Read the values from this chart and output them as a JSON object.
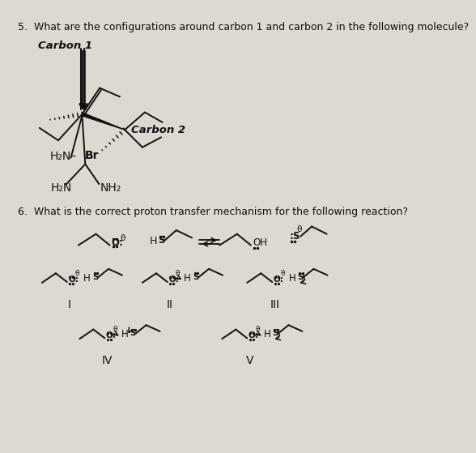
{
  "bg_color": "#ddd9d0",
  "text_color": "#111111",
  "q5_text": "5.  What are the configurations around carbon 1 and carbon 2 in the following molecule?",
  "q6_text": "6.  What is the correct proton transfer mechanism for the following reaction?",
  "carbon1_label": "Carbon 1",
  "carbon2_label": "Carbon 2",
  "br_label": "Br",
  "h2n1": "H₂N–",
  "h2n2": "H₂N",
  "nh2": "NH₂",
  "roman_I": "I",
  "roman_II": "II",
  "roman_III": "III",
  "roman_IV": "IV",
  "roman_V": "V"
}
